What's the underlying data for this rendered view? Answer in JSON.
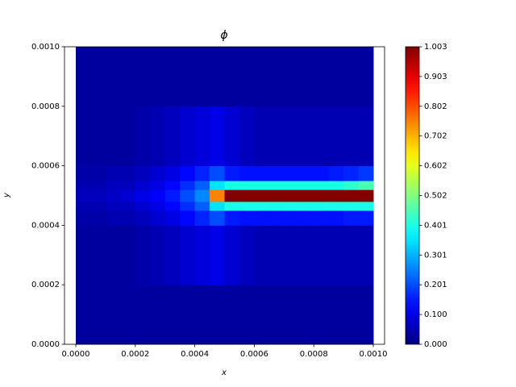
{
  "chart_data": {
    "type": "heatmap",
    "title": "ϕ",
    "x_label": "x",
    "y_label": "y",
    "colormap": "jet",
    "xlim": [
      -3.8e-05,
      0.001038
    ],
    "ylim": [
      0,
      0.001
    ],
    "xticks": [
      {
        "value": 0,
        "label": "0.0000"
      },
      {
        "value": 0.0002,
        "label": "0.0002"
      },
      {
        "value": 0.0004,
        "label": "0.0004"
      },
      {
        "value": 0.0006,
        "label": "0.0006"
      },
      {
        "value": 0.0008,
        "label": "0.0008"
      },
      {
        "value": 0.001,
        "label": "0.0010"
      }
    ],
    "yticks": [
      {
        "value": 0,
        "label": "0.0000"
      },
      {
        "value": 0.0002,
        "label": "0.0002"
      },
      {
        "value": 0.0004,
        "label": "0.0004"
      },
      {
        "value": 0.0006,
        "label": "0.0006"
      },
      {
        "value": 0.0008,
        "label": "0.0008"
      },
      {
        "value": 0.001,
        "label": "0.0010"
      }
    ],
    "x_bins": [
      0,
      5e-05,
      0.0001,
      0.00015,
      0.0002,
      0.00025,
      0.0003,
      0.00035,
      0.0004,
      0.00045,
      0.0005,
      0.00055,
      0.0006,
      0.00065,
      0.0007,
      0.00075,
      0.0008,
      0.00085,
      0.0009,
      0.00095,
      0.001
    ],
    "y_bins": [
      0,
      0.0002,
      0.0004,
      0.00045,
      0.00048,
      0.00052,
      0.00055,
      0.0006,
      0.0008,
      0.001
    ],
    "values": [
      [
        0.03,
        0.03,
        0.03,
        0.03,
        0.03,
        0.03,
        0.03,
        0.03,
        0.03,
        0.03,
        0.03,
        0.03,
        0.03,
        0.03,
        0.03,
        0.03,
        0.03,
        0.03,
        0.03,
        0.03
      ],
      [
        0.03,
        0.03,
        0.03,
        0.03,
        0.04,
        0.05,
        0.06,
        0.08,
        0.09,
        0.1,
        0.08,
        0.06,
        0.05,
        0.05,
        0.05,
        0.05,
        0.05,
        0.05,
        0.05,
        0.05
      ],
      [
        0.04,
        0.04,
        0.05,
        0.05,
        0.06,
        0.08,
        0.1,
        0.13,
        0.16,
        0.2,
        0.15,
        0.14,
        0.14,
        0.14,
        0.14,
        0.14,
        0.14,
        0.14,
        0.15,
        0.15
      ],
      [
        0.05,
        0.05,
        0.06,
        0.06,
        0.08,
        0.1,
        0.13,
        0.17,
        0.22,
        0.35,
        0.4,
        0.4,
        0.4,
        0.4,
        0.4,
        0.4,
        0.4,
        0.4,
        0.4,
        0.4
      ],
      [
        0.06,
        0.06,
        0.07,
        0.08,
        0.1,
        0.12,
        0.15,
        0.2,
        0.26,
        0.75,
        1.0,
        1.0,
        1.0,
        1.0,
        1.0,
        1.0,
        1.0,
        1.0,
        1.0,
        1.0
      ],
      [
        0.05,
        0.05,
        0.06,
        0.06,
        0.08,
        0.1,
        0.13,
        0.17,
        0.22,
        0.35,
        0.4,
        0.4,
        0.4,
        0.4,
        0.4,
        0.4,
        0.4,
        0.4,
        0.42,
        0.45
      ],
      [
        0.04,
        0.04,
        0.05,
        0.05,
        0.06,
        0.08,
        0.1,
        0.13,
        0.16,
        0.2,
        0.15,
        0.14,
        0.14,
        0.14,
        0.14,
        0.14,
        0.14,
        0.15,
        0.16,
        0.18
      ],
      [
        0.03,
        0.03,
        0.03,
        0.03,
        0.04,
        0.05,
        0.06,
        0.08,
        0.09,
        0.1,
        0.08,
        0.06,
        0.05,
        0.05,
        0.05,
        0.05,
        0.05,
        0.05,
        0.05,
        0.05
      ],
      [
        0.03,
        0.03,
        0.03,
        0.03,
        0.03,
        0.03,
        0.03,
        0.03,
        0.03,
        0.03,
        0.03,
        0.03,
        0.03,
        0.03,
        0.03,
        0.03,
        0.03,
        0.03,
        0.03,
        0.03
      ]
    ],
    "colorbar_lim": [
      0,
      1.003
    ],
    "colorbar_ticks": [
      {
        "value": 0,
        "label": "0.000"
      },
      {
        "value": 0.1003,
        "label": "0.100"
      },
      {
        "value": 0.2006,
        "label": "0.201"
      },
      {
        "value": 0.3009,
        "label": "0.301"
      },
      {
        "value": 0.4012,
        "label": "0.401"
      },
      {
        "value": 0.5015,
        "label": "0.502"
      },
      {
        "value": 0.6018,
        "label": "0.602"
      },
      {
        "value": 0.7021,
        "label": "0.702"
      },
      {
        "value": 0.8024,
        "label": "0.802"
      },
      {
        "value": 0.9027,
        "label": "0.903"
      },
      {
        "value": 1.003,
        "label": "1.003"
      }
    ]
  }
}
